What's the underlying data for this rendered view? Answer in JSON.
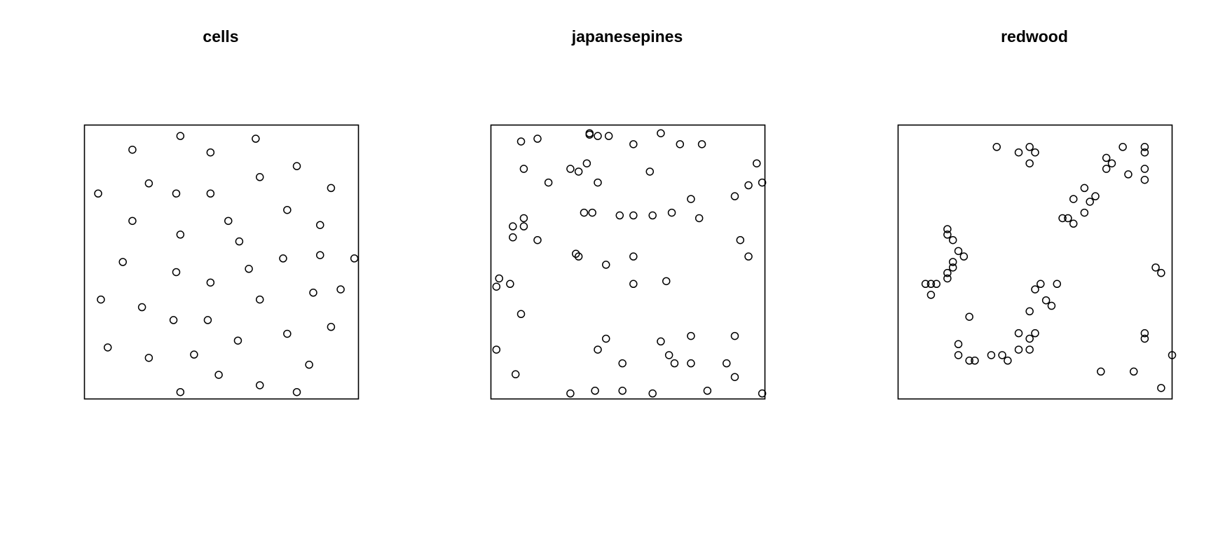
{
  "chart_data": [
    {
      "type": "scatter",
      "title": "cells",
      "xlim": [
        0,
        1
      ],
      "ylim": [
        0,
        1
      ],
      "axes_visible": false,
      "marker": "open-circle",
      "color": "#000000",
      "x": [
        0.35,
        0.625,
        0.175,
        0.46,
        0.775,
        0.05,
        0.235,
        0.335,
        0.46,
        0.64,
        0.9,
        0.175,
        0.525,
        0.74,
        0.86,
        0.35,
        0.565,
        0.14,
        0.335,
        0.6,
        0.725,
        0.86,
        0.985,
        0.46,
        0.835,
        0.06,
        0.21,
        0.64,
        0.935,
        0.325,
        0.45,
        0.56,
        0.74,
        0.9,
        0.085,
        0.235,
        0.4,
        0.82,
        0.49,
        0.35,
        0.64,
        0.775
      ],
      "y": [
        0.96,
        0.95,
        0.91,
        0.9,
        0.85,
        0.75,
        0.787,
        0.75,
        0.75,
        0.81,
        0.77,
        0.65,
        0.65,
        0.69,
        0.635,
        0.6,
        0.575,
        0.5,
        0.463,
        0.475,
        0.513,
        0.525,
        0.513,
        0.425,
        0.388,
        0.363,
        0.335,
        0.363,
        0.4,
        0.288,
        0.288,
        0.213,
        0.238,
        0.263,
        0.188,
        0.15,
        0.162,
        0.125,
        0.088,
        0.025,
        0.05,
        0.025
      ]
    },
    {
      "type": "scatter",
      "title": "japanesepines",
      "xlim": [
        0,
        1
      ],
      "ylim": [
        0,
        1
      ],
      "axes_visible": false,
      "marker": "open-circle",
      "color": "#000000",
      "x": [
        0.11,
        0.17,
        0.36,
        0.36,
        0.39,
        0.43,
        0.52,
        0.62,
        0.69,
        0.77,
        0.12,
        0.29,
        0.32,
        0.35,
        0.21,
        0.39,
        0.58,
        0.97,
        0.94,
        0.99,
        0.89,
        0.73,
        0.34,
        0.37,
        0.47,
        0.52,
        0.59,
        0.66,
        0.76,
        0.12,
        0.08,
        0.12,
        0.08,
        0.17,
        0.31,
        0.32,
        0.52,
        0.42,
        0.94,
        0.91,
        0.03,
        0.02,
        0.07,
        0.52,
        0.64,
        0.11,
        0.42,
        0.39,
        0.62,
        0.73,
        0.89,
        0.02,
        0.65,
        0.48,
        0.67,
        0.73,
        0.86,
        0.09,
        0.89,
        0.29,
        0.38,
        0.48,
        0.59,
        0.79,
        0.99
      ],
      "y": [
        0.94,
        0.95,
        0.97,
        0.965,
        0.96,
        0.96,
        0.93,
        0.97,
        0.93,
        0.93,
        0.84,
        0.84,
        0.83,
        0.86,
        0.79,
        0.79,
        0.83,
        0.86,
        0.78,
        0.79,
        0.74,
        0.73,
        0.68,
        0.68,
        0.67,
        0.67,
        0.67,
        0.68,
        0.66,
        0.66,
        0.63,
        0.63,
        0.59,
        0.58,
        0.53,
        0.52,
        0.52,
        0.49,
        0.52,
        0.58,
        0.44,
        0.41,
        0.42,
        0.42,
        0.43,
        0.31,
        0.22,
        0.18,
        0.21,
        0.23,
        0.23,
        0.18,
        0.16,
        0.13,
        0.13,
        0.13,
        0.13,
        0.09,
        0.08,
        0.02,
        0.03,
        0.03,
        0.02,
        0.03,
        0.02
      ]
    },
    {
      "type": "scatter",
      "title": "redwood",
      "xlim": [
        0,
        1
      ],
      "ylim": [
        0,
        1
      ],
      "axes_visible": false,
      "marker": "open-circle",
      "color": "#000000",
      "x": [
        0.36,
        0.44,
        0.48,
        0.5,
        0.48,
        0.78,
        0.76,
        0.76,
        0.84,
        0.82,
        0.9,
        0.9,
        0.9,
        0.9,
        0.68,
        0.64,
        0.72,
        0.7,
        0.6,
        0.62,
        0.64,
        0.68,
        0.18,
        0.18,
        0.2,
        0.22,
        0.24,
        0.2,
        0.2,
        0.18,
        0.18,
        0.1,
        0.12,
        0.14,
        0.12,
        0.94,
        0.96,
        0.5,
        0.52,
        0.58,
        0.54,
        0.56,
        0.48,
        0.26,
        0.5,
        0.44,
        0.48,
        0.9,
        0.9,
        0.22,
        0.22,
        0.26,
        0.28,
        0.34,
        0.38,
        0.4,
        0.44,
        0.48,
        1.0,
        0.74,
        0.86,
        0.96
      ],
      "y": [
        0.92,
        0.9,
        0.92,
        0.9,
        0.86,
        0.86,
        0.84,
        0.88,
        0.82,
        0.92,
        0.92,
        0.9,
        0.84,
        0.8,
        0.77,
        0.73,
        0.74,
        0.72,
        0.66,
        0.66,
        0.64,
        0.68,
        0.62,
        0.6,
        0.58,
        0.54,
        0.52,
        0.5,
        0.48,
        0.46,
        0.44,
        0.42,
        0.42,
        0.42,
        0.38,
        0.48,
        0.46,
        0.4,
        0.42,
        0.42,
        0.36,
        0.34,
        0.32,
        0.3,
        0.24,
        0.24,
        0.22,
        0.24,
        0.22,
        0.2,
        0.16,
        0.14,
        0.14,
        0.16,
        0.16,
        0.14,
        0.18,
        0.18,
        0.16,
        0.1,
        0.1,
        0.04
      ]
    }
  ]
}
